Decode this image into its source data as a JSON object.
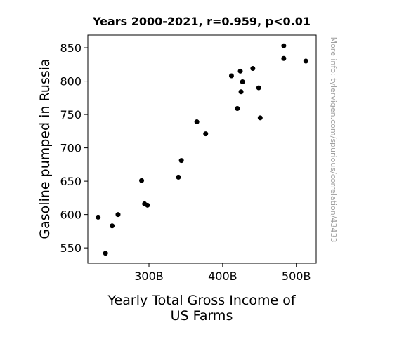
{
  "chart_data": {
    "type": "scatter",
    "title": "Years 2000-2021, r=0.959, p<0.01",
    "xlabel_lines": [
      "Yearly Total Gross Income of",
      "US Farms"
    ],
    "ylabel": "Gasoline pumped in Russia",
    "side_note": "More info: tylervigen.com/spurious/correlation/43433",
    "xlim": [
      217,
      527
    ],
    "ylim": [
      527,
      869
    ],
    "x_ticks": [
      {
        "value": 300,
        "label": "300B"
      },
      {
        "value": 400,
        "label": "400B"
      },
      {
        "value": 500,
        "label": "500B"
      }
    ],
    "y_ticks": [
      {
        "value": 550,
        "label": "550"
      },
      {
        "value": 600,
        "label": "600"
      },
      {
        "value": 650,
        "label": "650"
      },
      {
        "value": 700,
        "label": "700"
      },
      {
        "value": 750,
        "label": "750"
      },
      {
        "value": 800,
        "label": "800"
      },
      {
        "value": 850,
        "label": "850"
      }
    ],
    "grid": false,
    "marker_color": "#000000",
    "points": [
      {
        "x": 231,
        "y": 596
      },
      {
        "x": 241,
        "y": 542
      },
      {
        "x": 250,
        "y": 583
      },
      {
        "x": 258,
        "y": 600
      },
      {
        "x": 290,
        "y": 651
      },
      {
        "x": 294,
        "y": 616
      },
      {
        "x": 298,
        "y": 614
      },
      {
        "x": 340,
        "y": 656
      },
      {
        "x": 344,
        "y": 681
      },
      {
        "x": 365,
        "y": 739
      },
      {
        "x": 377,
        "y": 721
      },
      {
        "x": 412,
        "y": 808
      },
      {
        "x": 420,
        "y": 759
      },
      {
        "x": 424,
        "y": 815
      },
      {
        "x": 425,
        "y": 784
      },
      {
        "x": 427,
        "y": 799
      },
      {
        "x": 441,
        "y": 819
      },
      {
        "x": 449,
        "y": 790
      },
      {
        "x": 451,
        "y": 745
      },
      {
        "x": 483,
        "y": 853
      },
      {
        "x": 483,
        "y": 834
      },
      {
        "x": 513,
        "y": 830
      }
    ]
  }
}
